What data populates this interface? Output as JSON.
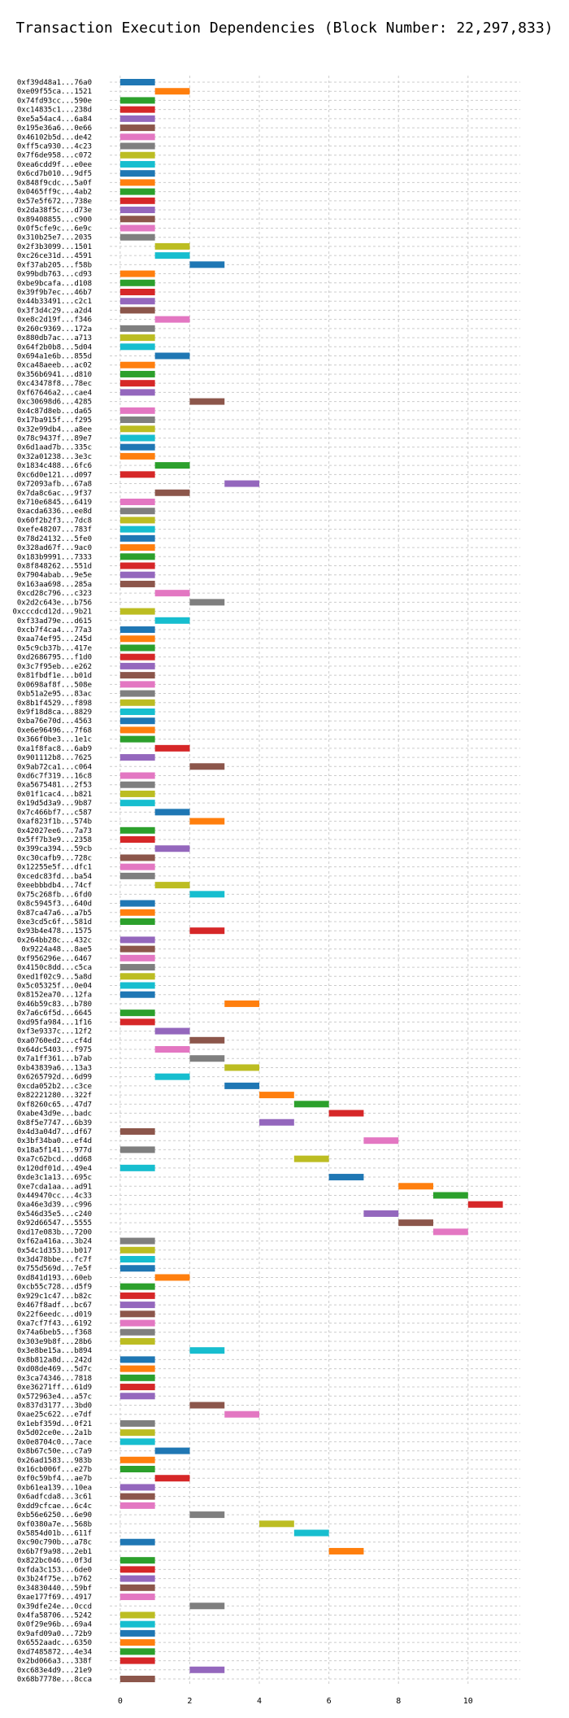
{
  "chart_data": {
    "type": "bar",
    "orientation": "horizontal",
    "title": "Transaction Execution Dependencies (Block Number: 22,297,833)",
    "xlabel": "",
    "ylabel": "",
    "xlim": [
      -0.3,
      11.5
    ],
    "xticks": [
      0,
      2,
      4,
      6,
      8,
      10
    ],
    "grid": true,
    "palette": [
      "#1f77b4",
      "#ff7f0e",
      "#2ca02c",
      "#d62728",
      "#9467bd",
      "#8c564b",
      "#e377c2",
      "#7f7f7f",
      "#bcbd22",
      "#17becf"
    ],
    "rows": [
      {
        "label": "0xf39d48a1...76a0",
        "start": 0,
        "end": 1
      },
      {
        "label": "0xe09f55ca...1521",
        "start": 1,
        "end": 2
      },
      {
        "label": "0x74fd93cc...590e",
        "start": 0,
        "end": 1
      },
      {
        "label": "0xc14835c1...238d",
        "start": 0,
        "end": 1
      },
      {
        "label": "0xe5a54ac4...6a84",
        "start": 0,
        "end": 1
      },
      {
        "label": "0x195e36a6...0e66",
        "start": 0,
        "end": 1
      },
      {
        "label": "0x46102b5d...de42",
        "start": 0,
        "end": 1
      },
      {
        "label": "0xff5ca930...4c23",
        "start": 0,
        "end": 1
      },
      {
        "label": "0x7f6de958...c072",
        "start": 0,
        "end": 1
      },
      {
        "label": "0xea6cdd9f...e0ee",
        "start": 0,
        "end": 1
      },
      {
        "label": "0x6cd7b010...9df5",
        "start": 0,
        "end": 1
      },
      {
        "label": "0x848f9cdc...5a0f",
        "start": 0,
        "end": 1
      },
      {
        "label": "0x0465ff9c...4ab2",
        "start": 0,
        "end": 1
      },
      {
        "label": "0x57e5f672...738e",
        "start": 0,
        "end": 1
      },
      {
        "label": "0x2da38f5c...d73e",
        "start": 0,
        "end": 1
      },
      {
        "label": "0x89408855...c900",
        "start": 0,
        "end": 1
      },
      {
        "label": "0x0f5cfe9c...6e9c",
        "start": 0,
        "end": 1
      },
      {
        "label": "0x310b25e7...2035",
        "start": 0,
        "end": 1
      },
      {
        "label": "0x2f3b3099...1501",
        "start": 1,
        "end": 2
      },
      {
        "label": "0xc26ce31d...4591",
        "start": 1,
        "end": 2
      },
      {
        "label": "0xf37ab205...f58b",
        "start": 2,
        "end": 3
      },
      {
        "label": "0x99bdb763...cd93",
        "start": 0,
        "end": 1
      },
      {
        "label": "0xbe9bcafa...d108",
        "start": 0,
        "end": 1
      },
      {
        "label": "0x39f9b7ec...46b7",
        "start": 0,
        "end": 1
      },
      {
        "label": "0x44b33491...c2c1",
        "start": 0,
        "end": 1
      },
      {
        "label": "0x3f3d4c29...a2d4",
        "start": 0,
        "end": 1
      },
      {
        "label": "0xe8c2d19f...f346",
        "start": 1,
        "end": 2
      },
      {
        "label": "0x260c9369...172a",
        "start": 0,
        "end": 1
      },
      {
        "label": "0x880db7ac...a713",
        "start": 0,
        "end": 1
      },
      {
        "label": "0x64f2b0b8...5d04",
        "start": 0,
        "end": 1
      },
      {
        "label": "0x694a1e6b...855d",
        "start": 1,
        "end": 2
      },
      {
        "label": "0xca48aeeb...ac02",
        "start": 0,
        "end": 1
      },
      {
        "label": "0x356b6941...d810",
        "start": 0,
        "end": 1
      },
      {
        "label": "0xc43478f8...78ec",
        "start": 0,
        "end": 1
      },
      {
        "label": "0xf67646a2...cae4",
        "start": 0,
        "end": 1
      },
      {
        "label": "0xc30698d6...4285",
        "start": 2,
        "end": 3
      },
      {
        "label": "0x4c87d8eb...da65",
        "start": 0,
        "end": 1
      },
      {
        "label": "0x17ba915f...f295",
        "start": 0,
        "end": 1
      },
      {
        "label": "0x32e99db4...a8ee",
        "start": 0,
        "end": 1
      },
      {
        "label": "0x78c9437f...89e7",
        "start": 0,
        "end": 1
      },
      {
        "label": "0x6d1aad7b...335c",
        "start": 0,
        "end": 1
      },
      {
        "label": "0x32a01238...3e3c",
        "start": 0,
        "end": 1
      },
      {
        "label": "0x1834c488...6fc6",
        "start": 1,
        "end": 2
      },
      {
        "label": "0xc6d0e121...d097",
        "start": 0,
        "end": 1
      },
      {
        "label": "0x72093afb...67a8",
        "start": 3,
        "end": 4
      },
      {
        "label": "0x7da8c6ac...9f37",
        "start": 1,
        "end": 2
      },
      {
        "label": "0x710e6845...6419",
        "start": 0,
        "end": 1
      },
      {
        "label": "0xacda6336...ee8d",
        "start": 0,
        "end": 1
      },
      {
        "label": "0x60f2b2f3...7dc8",
        "start": 0,
        "end": 1
      },
      {
        "label": "0xefe48207...783f",
        "start": 0,
        "end": 1
      },
      {
        "label": "0x78d24132...5fe0",
        "start": 0,
        "end": 1
      },
      {
        "label": "0x328ad67f...9ac0",
        "start": 0,
        "end": 1
      },
      {
        "label": "0x183b9991...7333",
        "start": 0,
        "end": 1
      },
      {
        "label": "0x8f848262...551d",
        "start": 0,
        "end": 1
      },
      {
        "label": "0x7904abab...9e5e",
        "start": 0,
        "end": 1
      },
      {
        "label": "0x163aa698...285a",
        "start": 0,
        "end": 1
      },
      {
        "label": "0xcd28c796...c323",
        "start": 1,
        "end": 2
      },
      {
        "label": "0x2d2c643e...b756",
        "start": 2,
        "end": 3
      },
      {
        "label": "0xcccdcd12d...9b21",
        "start": 0,
        "end": 1
      },
      {
        "label": "0xf33ad79e...d615",
        "start": 1,
        "end": 2
      },
      {
        "label": "0xcb7f4ca4...77a3",
        "start": 0,
        "end": 1
      },
      {
        "label": "0xaa74ef95...245d",
        "start": 0,
        "end": 1
      },
      {
        "label": "0x5c9cb37b...417e",
        "start": 0,
        "end": 1
      },
      {
        "label": "0xd2686795...f1d0",
        "start": 0,
        "end": 1
      },
      {
        "label": "0x3c7f95eb...e262",
        "start": 0,
        "end": 1
      },
      {
        "label": "0x81fbdf1e...b01d",
        "start": 0,
        "end": 1
      },
      {
        "label": "0x0698af8f...508e",
        "start": 0,
        "end": 1
      },
      {
        "label": "0xb51a2e95...83ac",
        "start": 0,
        "end": 1
      },
      {
        "label": "0x8b1f4529...f898",
        "start": 0,
        "end": 1
      },
      {
        "label": "0x9f18d8ca...8829",
        "start": 0,
        "end": 1
      },
      {
        "label": "0xba76e70d...4563",
        "start": 0,
        "end": 1
      },
      {
        "label": "0xe6e96496...7f68",
        "start": 0,
        "end": 1
      },
      {
        "label": "0x366f0be3...1e1c",
        "start": 0,
        "end": 1
      },
      {
        "label": "0xa1f8fac8...6ab9",
        "start": 1,
        "end": 2
      },
      {
        "label": "0x901112b8...7625",
        "start": 0,
        "end": 1
      },
      {
        "label": "0x9ab72ca1...c064",
        "start": 2,
        "end": 3
      },
      {
        "label": "0xd6c7f319...16c8",
        "start": 0,
        "end": 1
      },
      {
        "label": "0xa5675481...2f53",
        "start": 0,
        "end": 1
      },
      {
        "label": "0x01f1cac4...b821",
        "start": 0,
        "end": 1
      },
      {
        "label": "0x19d5d3a9...9b87",
        "start": 0,
        "end": 1
      },
      {
        "label": "0x7c466bf7...c587",
        "start": 1,
        "end": 2
      },
      {
        "label": "0xaf823f1b...574b",
        "start": 2,
        "end": 3
      },
      {
        "label": "0x42027ee6...7a73",
        "start": 0,
        "end": 1
      },
      {
        "label": "0x5ff7b3e9...2358",
        "start": 0,
        "end": 1
      },
      {
        "label": "0x399ca394...59cb",
        "start": 1,
        "end": 2
      },
      {
        "label": "0xc30cafb9...728c",
        "start": 0,
        "end": 1
      },
      {
        "label": "0x12255e5f...dfc1",
        "start": 0,
        "end": 1
      },
      {
        "label": "0xcedc83fd...ba54",
        "start": 0,
        "end": 1
      },
      {
        "label": "0xeebbbdb4...74cf",
        "start": 1,
        "end": 2
      },
      {
        "label": "0x75c268fb...6fd0",
        "start": 2,
        "end": 3
      },
      {
        "label": "0x8c5945f3...640d",
        "start": 0,
        "end": 1
      },
      {
        "label": "0x87ca47a6...a7b5",
        "start": 0,
        "end": 1
      },
      {
        "label": "0xe3cd5c6f...581d",
        "start": 0,
        "end": 1
      },
      {
        "label": "0x93b4e478...1575",
        "start": 2,
        "end": 3
      },
      {
        "label": "0x264bb28c...432c",
        "start": 0,
        "end": 1
      },
      {
        "label": "0x9224a48...8ae5",
        "start": 0,
        "end": 1
      },
      {
        "label": "0xf956296e...6467",
        "start": 0,
        "end": 1
      },
      {
        "label": "0x4150c8dd...c5ca",
        "start": 0,
        "end": 1
      },
      {
        "label": "0xed1f02c9...5a8d",
        "start": 0,
        "end": 1
      },
      {
        "label": "0x5c05325f...0e04",
        "start": 0,
        "end": 1
      },
      {
        "label": "0x8152ea70...12fa",
        "start": 0,
        "end": 1
      },
      {
        "label": "0x46b59c83...b780",
        "start": 3,
        "end": 4
      },
      {
        "label": "0x7a6c6f5d...6645",
        "start": 0,
        "end": 1
      },
      {
        "label": "0xd95fa984...1f16",
        "start": 0,
        "end": 1
      },
      {
        "label": "0xf3e9337c...12f2",
        "start": 1,
        "end": 2
      },
      {
        "label": "0xa0760ed2...cf4d",
        "start": 2,
        "end": 3
      },
      {
        "label": "0x64dc5403...f975",
        "start": 1,
        "end": 2
      },
      {
        "label": "0x7a1ff361...b7ab",
        "start": 2,
        "end": 3
      },
      {
        "label": "0xb43839a6...13a3",
        "start": 3,
        "end": 4
      },
      {
        "label": "0x6265792d...6d99",
        "start": 1,
        "end": 2
      },
      {
        "label": "0xcda052b2...c3ce",
        "start": 3,
        "end": 4
      },
      {
        "label": "0x82221280...322f",
        "start": 4,
        "end": 5
      },
      {
        "label": "0xf8260c65...47d7",
        "start": 5,
        "end": 6
      },
      {
        "label": "0xabe43d9e...badc",
        "start": 6,
        "end": 7
      },
      {
        "label": "0x8f5e7747...6b39",
        "start": 4,
        "end": 5
      },
      {
        "label": "0x4d3a04d7...df67",
        "start": 0,
        "end": 1
      },
      {
        "label": "0x3bf34ba0...ef4d",
        "start": 7,
        "end": 8
      },
      {
        "label": "0x18a5f141...977d",
        "start": 0,
        "end": 1
      },
      {
        "label": "0xa7c62bcd...dd68",
        "start": 5,
        "end": 6
      },
      {
        "label": "0x120df01d...49e4",
        "start": 0,
        "end": 1
      },
      {
        "label": "0xde3c1a13...695c",
        "start": 6,
        "end": 7
      },
      {
        "label": "0xe7cda1aa...ad91",
        "start": 8,
        "end": 9
      },
      {
        "label": "0x449470cc...4c33",
        "start": 9,
        "end": 10
      },
      {
        "label": "0xa46e3d39...c996",
        "start": 10,
        "end": 11
      },
      {
        "label": "0x546d35e5...c240",
        "start": 7,
        "end": 8
      },
      {
        "label": "0x92d66547...5555",
        "start": 8,
        "end": 9
      },
      {
        "label": "0xd17e083b...7200",
        "start": 9,
        "end": 10
      },
      {
        "label": "0xf62a416a...3b24",
        "start": 0,
        "end": 1
      },
      {
        "label": "0x54c1d353...b017",
        "start": 0,
        "end": 1
      },
      {
        "label": "0x3d478bbe...fc7f",
        "start": 0,
        "end": 1
      },
      {
        "label": "0x755d569d...7e5f",
        "start": 0,
        "end": 1
      },
      {
        "label": "0xd841d193...60eb",
        "start": 1,
        "end": 2
      },
      {
        "label": "0xcb55c728...d5f9",
        "start": 0,
        "end": 1
      },
      {
        "label": "0x929c1c47...b82c",
        "start": 0,
        "end": 1
      },
      {
        "label": "0x467f8adf...bc67",
        "start": 0,
        "end": 1
      },
      {
        "label": "0x22f6eedc...d019",
        "start": 0,
        "end": 1
      },
      {
        "label": "0xa7cf7f43...6192",
        "start": 0,
        "end": 1
      },
      {
        "label": "0x74a6beb5...f368",
        "start": 0,
        "end": 1
      },
      {
        "label": "0x303e9b8f...28b6",
        "start": 0,
        "end": 1
      },
      {
        "label": "0x3e8be15a...b894",
        "start": 2,
        "end": 3
      },
      {
        "label": "0x8b812a8d...242d",
        "start": 0,
        "end": 1
      },
      {
        "label": "0xd08de469...5d7c",
        "start": 0,
        "end": 1
      },
      {
        "label": "0x3ca74346...7818",
        "start": 0,
        "end": 1
      },
      {
        "label": "0xe36271ff...61d9",
        "start": 0,
        "end": 1
      },
      {
        "label": "0x572963e4...a57c",
        "start": 0,
        "end": 1
      },
      {
        "label": "0x837d3177...3bd0",
        "start": 2,
        "end": 3
      },
      {
        "label": "0xae25c622...e7df",
        "start": 3,
        "end": 4
      },
      {
        "label": "0x1ebf359d...0f21",
        "start": 0,
        "end": 1
      },
      {
        "label": "0x5d02ce0e...2a1b",
        "start": 0,
        "end": 1
      },
      {
        "label": "0x0e8704c0...7ace",
        "start": 0,
        "end": 1
      },
      {
        "label": "0x8b67c50e...c7a9",
        "start": 1,
        "end": 2
      },
      {
        "label": "0x26ad1583...983b",
        "start": 0,
        "end": 1
      },
      {
        "label": "0x16cb006f...e27b",
        "start": 0,
        "end": 1
      },
      {
        "label": "0xf0c59bf4...ae7b",
        "start": 1,
        "end": 2
      },
      {
        "label": "0xb61ea139...10ea",
        "start": 0,
        "end": 1
      },
      {
        "label": "0x6adfcda8...3c61",
        "start": 0,
        "end": 1
      },
      {
        "label": "0xdd9cfcae...6c4c",
        "start": 0,
        "end": 1
      },
      {
        "label": "0xb56e6250...6e90",
        "start": 2,
        "end": 3
      },
      {
        "label": "0xf0380a7e...568b",
        "start": 4,
        "end": 5
      },
      {
        "label": "0x5854d01b...611f",
        "start": 5,
        "end": 6
      },
      {
        "label": "0xc90c790b...a78c",
        "start": 0,
        "end": 1
      },
      {
        "label": "0x6b7f9a98...2eb1",
        "start": 6,
        "end": 7
      },
      {
        "label": "0x822bc046...0f3d",
        "start": 0,
        "end": 1
      },
      {
        "label": "0xfda3c153...6de0",
        "start": 0,
        "end": 1
      },
      {
        "label": "0x3b24f75e...b762",
        "start": 0,
        "end": 1
      },
      {
        "label": "0x34830440...59bf",
        "start": 0,
        "end": 1
      },
      {
        "label": "0xae177f69...4917",
        "start": 0,
        "end": 1
      },
      {
        "label": "0x39dfe24e...0ccd",
        "start": 2,
        "end": 3
      },
      {
        "label": "0x4fa58706...5242",
        "start": 0,
        "end": 1
      },
      {
        "label": "0x0f29e96b...69a4",
        "start": 0,
        "end": 1
      },
      {
        "label": "0x9afd09a0...72b9",
        "start": 0,
        "end": 1
      },
      {
        "label": "0x6552aadc...6350",
        "start": 0,
        "end": 1
      },
      {
        "label": "0xd7485872...4e34",
        "start": 0,
        "end": 1
      },
      {
        "label": "0x2bd066a3...338f",
        "start": 0,
        "end": 1
      },
      {
        "label": "0xc683e4d9...21e9",
        "start": 2,
        "end": 3
      },
      {
        "label": "0x68b7778e...8cca",
        "start": 0,
        "end": 1
      }
    ]
  }
}
